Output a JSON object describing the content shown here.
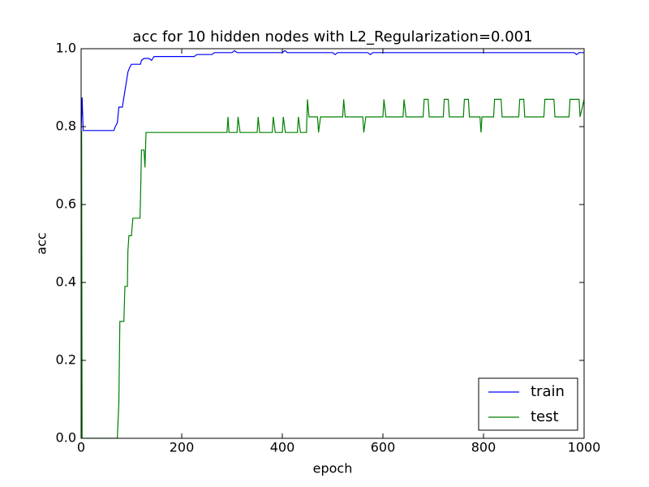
{
  "chart_data": {
    "type": "line",
    "title": "acc for 10 hidden nodes with L2_Regularization=0.001",
    "xlabel": "epoch",
    "ylabel": "acc",
    "xlim": [
      0,
      1000
    ],
    "xticks": [
      0,
      200,
      400,
      600,
      800,
      1000
    ],
    "ylim": [
      0,
      1
    ],
    "yticks": [
      {
        "value": 0,
        "label": "0.0"
      },
      0.2,
      0.4,
      0.6,
      0.8,
      {
        "value": 1,
        "label": "1.0"
      }
    ],
    "legend": "lower right",
    "grid": false,
    "series": [
      {
        "name": "train",
        "color": "#0000ff",
        "x": [
          0,
          2,
          4,
          65,
          68,
          72,
          75,
          82,
          85,
          90,
          93,
          96,
          100,
          118,
          120,
          125,
          135,
          140,
          145,
          225,
          230,
          260,
          265,
          300,
          305,
          310,
          400,
          405,
          410,
          500,
          505,
          510,
          570,
          575,
          580,
          980,
          985,
          990,
          1000
        ],
        "values": [
          0.79,
          0.875,
          0.79,
          0.79,
          0.8,
          0.81,
          0.85,
          0.85,
          0.875,
          0.915,
          0.94,
          0.95,
          0.96,
          0.96,
          0.97,
          0.975,
          0.975,
          0.97,
          0.98,
          0.98,
          0.985,
          0.985,
          0.99,
          0.99,
          0.995,
          0.99,
          0.99,
          0.995,
          0.99,
          0.99,
          0.985,
          0.99,
          0.99,
          0.985,
          0.99,
          0.99,
          0.985,
          0.99,
          0.99
        ]
      },
      {
        "name": "test",
        "color": "#008000",
        "x": [
          0,
          1,
          2,
          72,
          75,
          77,
          85,
          87,
          92,
          93,
          95,
          100,
          103,
          117,
          118,
          120,
          125,
          127,
          129,
          290,
          292,
          294,
          310,
          312,
          316,
          350,
          352,
          355,
          380,
          382,
          386,
          400,
          402,
          406,
          430,
          432,
          436,
          448,
          450,
          453,
          470,
          472,
          476,
          520,
          522,
          525,
          560,
          562,
          566,
          600,
          602,
          606,
          640,
          642,
          646,
          680,
          682,
          690,
          692,
          720,
          722,
          730,
          732,
          760,
          762,
          770,
          772,
          793,
          795,
          797,
          820,
          822,
          835,
          837,
          870,
          872,
          880,
          882,
          920,
          922,
          940,
          942,
          970,
          972,
          990,
          992,
          1000
        ],
        "values": [
          0,
          0.79,
          0,
          0,
          0.09,
          0.3,
          0.3,
          0.39,
          0.39,
          0.48,
          0.52,
          0.52,
          0.565,
          0.565,
          0.61,
          0.74,
          0.74,
          0.695,
          0.785,
          0.785,
          0.825,
          0.785,
          0.785,
          0.825,
          0.785,
          0.785,
          0.825,
          0.785,
          0.785,
          0.825,
          0.785,
          0.785,
          0.825,
          0.785,
          0.785,
          0.825,
          0.785,
          0.785,
          0.87,
          0.825,
          0.825,
          0.785,
          0.825,
          0.825,
          0.87,
          0.825,
          0.825,
          0.785,
          0.825,
          0.825,
          0.87,
          0.825,
          0.825,
          0.87,
          0.825,
          0.825,
          0.87,
          0.87,
          0.825,
          0.825,
          0.87,
          0.87,
          0.825,
          0.825,
          0.87,
          0.87,
          0.825,
          0.825,
          0.785,
          0.825,
          0.825,
          0.87,
          0.87,
          0.825,
          0.825,
          0.87,
          0.87,
          0.825,
          0.825,
          0.87,
          0.87,
          0.825,
          0.825,
          0.87,
          0.87,
          0.825,
          0.87
        ]
      }
    ]
  }
}
